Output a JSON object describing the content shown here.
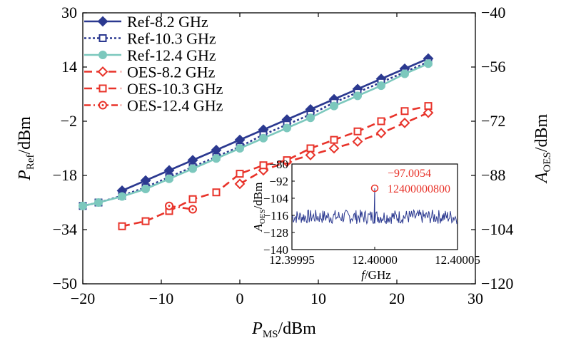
{
  "chart_data": [
    {
      "type": "line",
      "xlabel": "P_MS/dBm",
      "xlabel_main": "P",
      "xlabel_sub": "MS",
      "xlabel_unit": "/dBm",
      "ylabel_left_main": "P",
      "ylabel_left_sub": "Ref",
      "ylabel_left_unit": "/dBm",
      "ylabel_right_main": "A",
      "ylabel_right_sub": "OES",
      "ylabel_right_unit": "/dBm",
      "xlim": [
        -20,
        30
      ],
      "ylim_left": [
        -50,
        30
      ],
      "ylim_right": [
        -120,
        -40
      ],
      "x_ticks": [
        "−20",
        "−10",
        "0",
        "10",
        "20",
        "30"
      ],
      "y_left_ticks": [
        "−50",
        "−34",
        "−18",
        "−2",
        "14",
        "30"
      ],
      "y_right_ticks": [
        "−120",
        "−104",
        "−88",
        "−72",
        "−56",
        "−40"
      ],
      "grid": false,
      "legend_position": "top-left",
      "series": [
        {
          "name": "Ref-8.2 GHz",
          "axis": "left",
          "color": "#2b3990",
          "dash": "solid",
          "marker": "diamond-filled",
          "x": [
            -15,
            -12,
            -9,
            -6,
            -3,
            0,
            3,
            6,
            9,
            12,
            15,
            18,
            21,
            24
          ],
          "y": [
            -22.5,
            -19.5,
            -16.5,
            -13.5,
            -10.5,
            -7.5,
            -4.5,
            -1.5,
            1.5,
            4.5,
            7.5,
            10.5,
            13.5,
            16.5
          ]
        },
        {
          "name": "Ref-10.3 GHz",
          "axis": "left",
          "color": "#2b3990",
          "dash": "dotted",
          "marker": "square-open",
          "x": [
            -20,
            -18,
            -15,
            -12,
            -9,
            -6,
            -3,
            0,
            3,
            6,
            9,
            12,
            15,
            18,
            21,
            24
          ],
          "y": [
            -27,
            -26,
            -24,
            -21.5,
            -18.5,
            -15.5,
            -12.5,
            -9.5,
            -6,
            -3,
            0,
            3.5,
            6.5,
            9.5,
            12.5,
            15.5
          ]
        },
        {
          "name": "Ref-12.4 GHz",
          "axis": "left",
          "color": "#7cc8bd",
          "dash": "solid",
          "marker": "circle-filled",
          "x": [
            -20,
            -18,
            -15,
            -12,
            -9,
            -6,
            -3,
            0,
            3,
            6,
            9,
            12,
            15,
            18,
            21,
            24
          ],
          "y": [
            -27,
            -26,
            -24.2,
            -22,
            -19,
            -16,
            -13,
            -10,
            -7,
            -4,
            -1,
            2.5,
            5.5,
            8.5,
            12,
            15
          ]
        },
        {
          "name": "OES-8.2 GHz",
          "axis": "right",
          "color": "#e8332a",
          "dash": "dashed",
          "marker": "diamond-open",
          "x": [
            0,
            3,
            6,
            9,
            12,
            15,
            18,
            21,
            24
          ],
          "y": [
            -90.5,
            -86.5,
            -84,
            -82,
            -80,
            -78,
            -75.5,
            -72.5,
            -69.5
          ]
        },
        {
          "name": "OES-10.3 GHz",
          "axis": "right",
          "color": "#e8332a",
          "dash": "dashed",
          "marker": "square-open",
          "x": [
            -15,
            -12,
            -9,
            -6,
            -3,
            0,
            3,
            6,
            9,
            12,
            15,
            18,
            21,
            24
          ],
          "y": [
            -103,
            -101.5,
            -98.5,
            -95,
            -93,
            -87.5,
            -85,
            -83.5,
            -80,
            -77.5,
            -75,
            -72,
            -69,
            -67.5
          ]
        },
        {
          "name": "OES-12.4 GHz",
          "axis": "right",
          "color": "#e8332a",
          "dash": "dashdot",
          "marker": "circle-open",
          "x": [
            -9,
            -6
          ],
          "y": [
            -97,
            -98
          ]
        }
      ],
      "inset": {
        "type": "line",
        "xlabel_main": "f",
        "xlabel_unit": "/GHz",
        "ylabel_main": "A",
        "ylabel_sub": "OES",
        "ylabel_unit": "/dBm",
        "xlim": [
          12.39995,
          12.40005
        ],
        "ylim": [
          -140,
          -80
        ],
        "x_ticks": [
          "12.39995",
          "12.40000",
          "12.40005"
        ],
        "y_ticks": [
          "−80",
          "−92",
          "−104",
          "−116",
          "−128",
          "−140"
        ],
        "series_color": "#2b3990",
        "noise_floor": -117,
        "noise_amplitude": 5,
        "peak": {
          "x": 12.4,
          "y": -97.0054
        },
        "peak_value_label": "−97.0054",
        "peak_freq_label": "12400000800",
        "annotation_color": "#e8332a"
      }
    }
  ]
}
